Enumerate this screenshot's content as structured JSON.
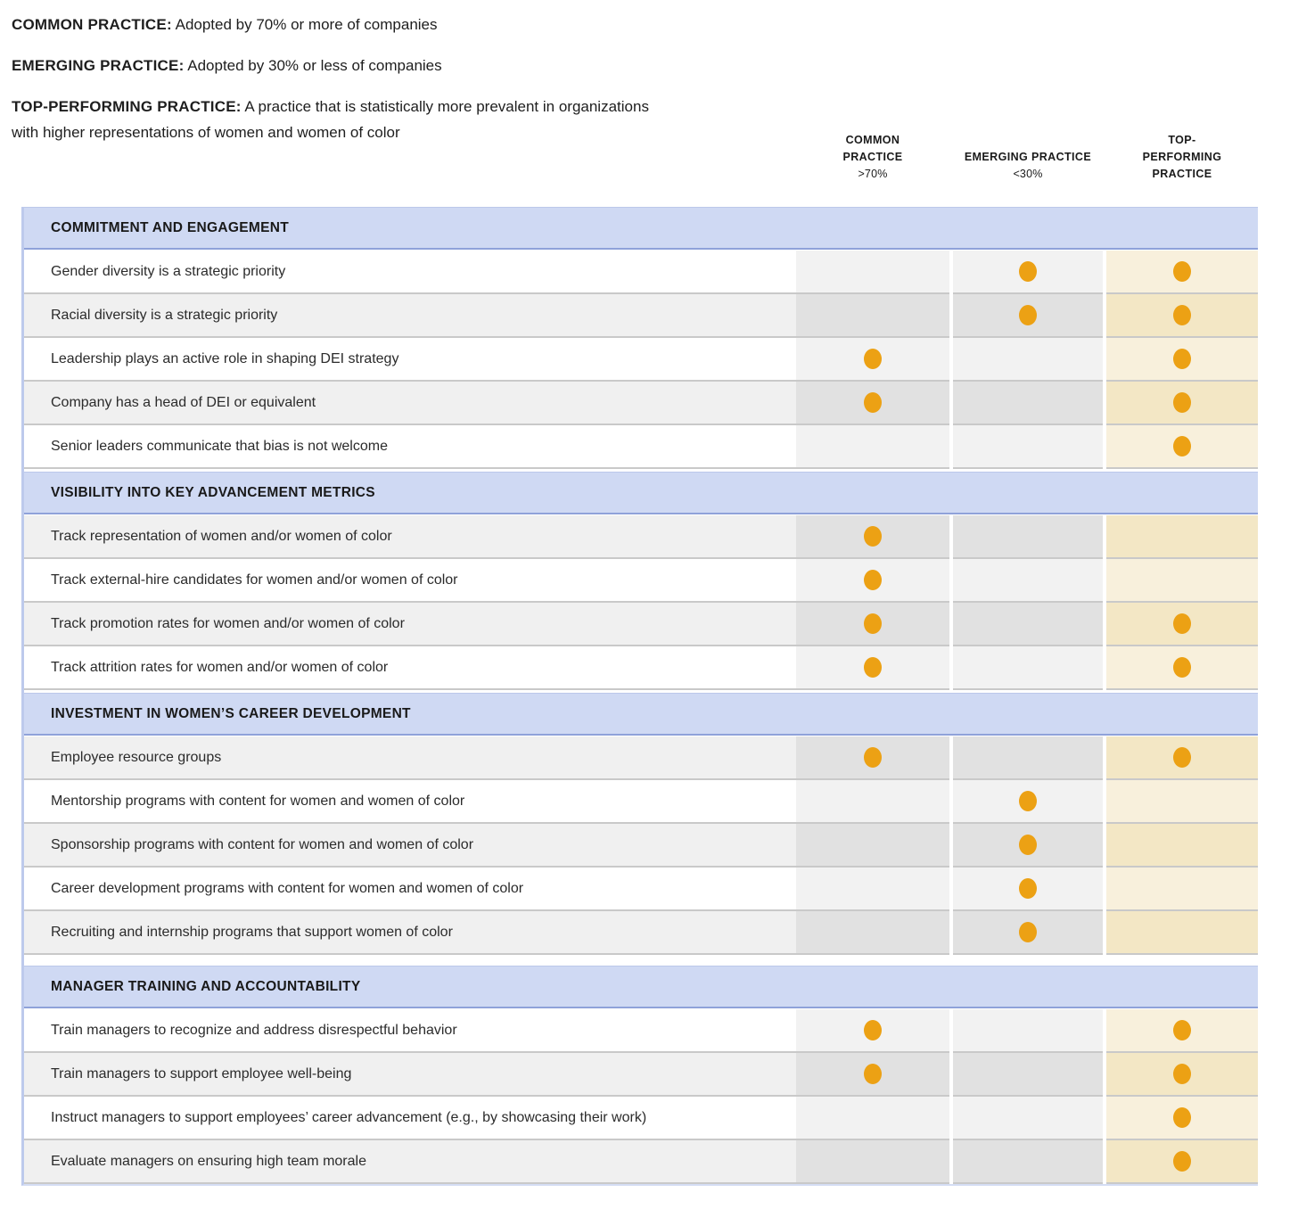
{
  "legend": {
    "items": [
      {
        "term": "COMMON PRACTICE:",
        "desc": "Adopted by 70% or more of companies"
      },
      {
        "term": "EMERGING PRACTICE:",
        "desc": "Adopted by 30% or less of companies"
      },
      {
        "term": "TOP-PERFORMING PRACTICE:",
        "desc": "A practice that is statistically more prevalent in organizations with higher representations of women and women of color"
      }
    ]
  },
  "chart_data": {
    "type": "table",
    "column_headers": [
      {
        "lines": [
          "COMMON",
          "PRACTICE"
        ],
        "threshold": ">70%"
      },
      {
        "lines": [
          "EMERGING PRACTICE"
        ],
        "threshold": "<30%"
      },
      {
        "lines": [
          "TOP-",
          "PERFORMING",
          "PRACTICE"
        ],
        "threshold": ""
      }
    ],
    "mark_legend": "orange dot = practice falls in this category",
    "sections": [
      {
        "title": "COMMITMENT AND ENGAGEMENT",
        "extra_gap": false,
        "rows": [
          {
            "label": "Gender diversity is a strategic priority",
            "common": false,
            "emerging": true,
            "top": true
          },
          {
            "label": "Racial diversity is a strategic priority",
            "common": false,
            "emerging": true,
            "top": true
          },
          {
            "label": "Leadership plays an active role in shaping DEI strategy",
            "common": true,
            "emerging": false,
            "top": true
          },
          {
            "label": "Company has a head of DEI or equivalent",
            "common": true,
            "emerging": false,
            "top": true
          },
          {
            "label": "Senior leaders communicate that bias is not welcome",
            "common": false,
            "emerging": false,
            "top": true
          }
        ]
      },
      {
        "title": "VISIBILITY INTO KEY ADVANCEMENT METRICS",
        "extra_gap": false,
        "rows": [
          {
            "label": "Track representation of women and/or women of color",
            "common": true,
            "emerging": false,
            "top": false
          },
          {
            "label": "Track external-hire candidates for women and/or women of color",
            "common": true,
            "emerging": false,
            "top": false
          },
          {
            "label": "Track promotion rates for women and/or women of color",
            "common": true,
            "emerging": false,
            "top": true
          },
          {
            "label": "Track attrition rates for women and/or women of color",
            "common": true,
            "emerging": false,
            "top": true
          }
        ]
      },
      {
        "title": "INVESTMENT IN WOMEN’S CAREER DEVELOPMENT",
        "extra_gap": false,
        "rows": [
          {
            "label": "Employee resource groups",
            "common": true,
            "emerging": false,
            "top": true
          },
          {
            "label": "Mentorship programs with content for women and women of color",
            "common": false,
            "emerging": true,
            "top": false
          },
          {
            "label": "Sponsorship programs with content for women and women of color",
            "common": false,
            "emerging": true,
            "top": false
          },
          {
            "label": "Career development programs with content for women and women of color",
            "common": false,
            "emerging": true,
            "top": false
          },
          {
            "label": "Recruiting and internship programs that support women of color",
            "common": false,
            "emerging": true,
            "top": false
          }
        ]
      },
      {
        "title": "MANAGER TRAINING AND ACCOUNTABILITY",
        "extra_gap": true,
        "rows": [
          {
            "label": "Train managers to recognize and address disrespectful behavior",
            "common": true,
            "emerging": false,
            "top": true
          },
          {
            "label": "Train managers to support employee well-being",
            "common": true,
            "emerging": false,
            "top": true
          },
          {
            "label": "Instruct managers to support employees’ career advancement (e.g., by showcasing their work)",
            "common": false,
            "emerging": false,
            "top": true
          },
          {
            "label": "Evaluate managers on ensuring high team morale",
            "common": false,
            "emerging": false,
            "top": true
          }
        ]
      }
    ]
  },
  "colors": {
    "section_header_bg": "#cfd9f3",
    "section_header_border": "#8fa2d9",
    "dot": "#ECA114",
    "row_light_label": "#ffffff",
    "row_dark_label": "#f0f0f0",
    "row_light_gray_col": "#f2f2f2",
    "row_dark_gray_col": "#e1e1e1",
    "row_light_beige_col": "#f8f0dc",
    "row_dark_beige_col": "#f3e7c5",
    "table_left_border": "#bdcaec",
    "row_separator": "#c9c9c9"
  }
}
